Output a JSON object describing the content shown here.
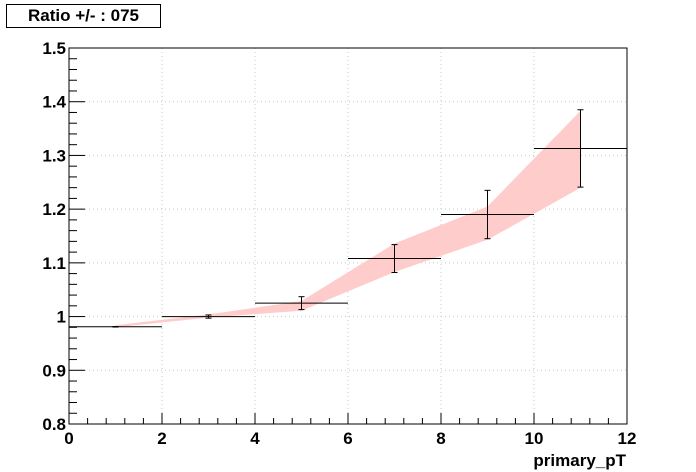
{
  "chart_data": {
    "type": "scatter",
    "title": "Ratio +/- : 075",
    "xlabel": "primary_pT",
    "ylabel": "",
    "xlim": [
      0,
      12
    ],
    "ylim": [
      0.8,
      1.5
    ],
    "grid": true,
    "x_ticks": [
      0,
      2,
      4,
      6,
      8,
      10,
      12
    ],
    "y_ticks": [
      0.8,
      0.9,
      1,
      1.1,
      1.2,
      1.3,
      1.4,
      1.5
    ],
    "x_tick_labels": [
      "0",
      "2",
      "4",
      "6",
      "8",
      "10",
      "12"
    ],
    "y_tick_labels": [
      "0.8",
      "0.9",
      "1",
      "1.1",
      "1.2",
      "1.3",
      "1.4",
      "1.5"
    ],
    "points": [
      {
        "x": 1,
        "y": 0.981,
        "x_low": 0,
        "x_high": 2,
        "y_err": 0.0005
      },
      {
        "x": 3,
        "y": 1.0,
        "x_low": 2,
        "x_high": 4,
        "y_err": 0.003
      },
      {
        "x": 5,
        "y": 1.025,
        "x_low": 4,
        "x_high": 6,
        "y_err": 0.012
      },
      {
        "x": 7,
        "y": 1.108,
        "x_low": 6,
        "x_high": 8,
        "y_err": 0.026
      },
      {
        "x": 9,
        "y": 1.19,
        "x_low": 8,
        "x_high": 10,
        "y_err": 0.045
      },
      {
        "x": 11,
        "y": 1.313,
        "x_low": 10,
        "x_high": 12,
        "y_err": 0.072
      }
    ],
    "band": {
      "color": "#ffcccc",
      "x": [
        1,
        3,
        5,
        7,
        9,
        11
      ],
      "upper": [
        0.984,
        1.004,
        1.029,
        1.136,
        1.205,
        1.383
      ],
      "lower": [
        0.98,
        0.998,
        1.011,
        1.083,
        1.143,
        1.24
      ]
    }
  }
}
